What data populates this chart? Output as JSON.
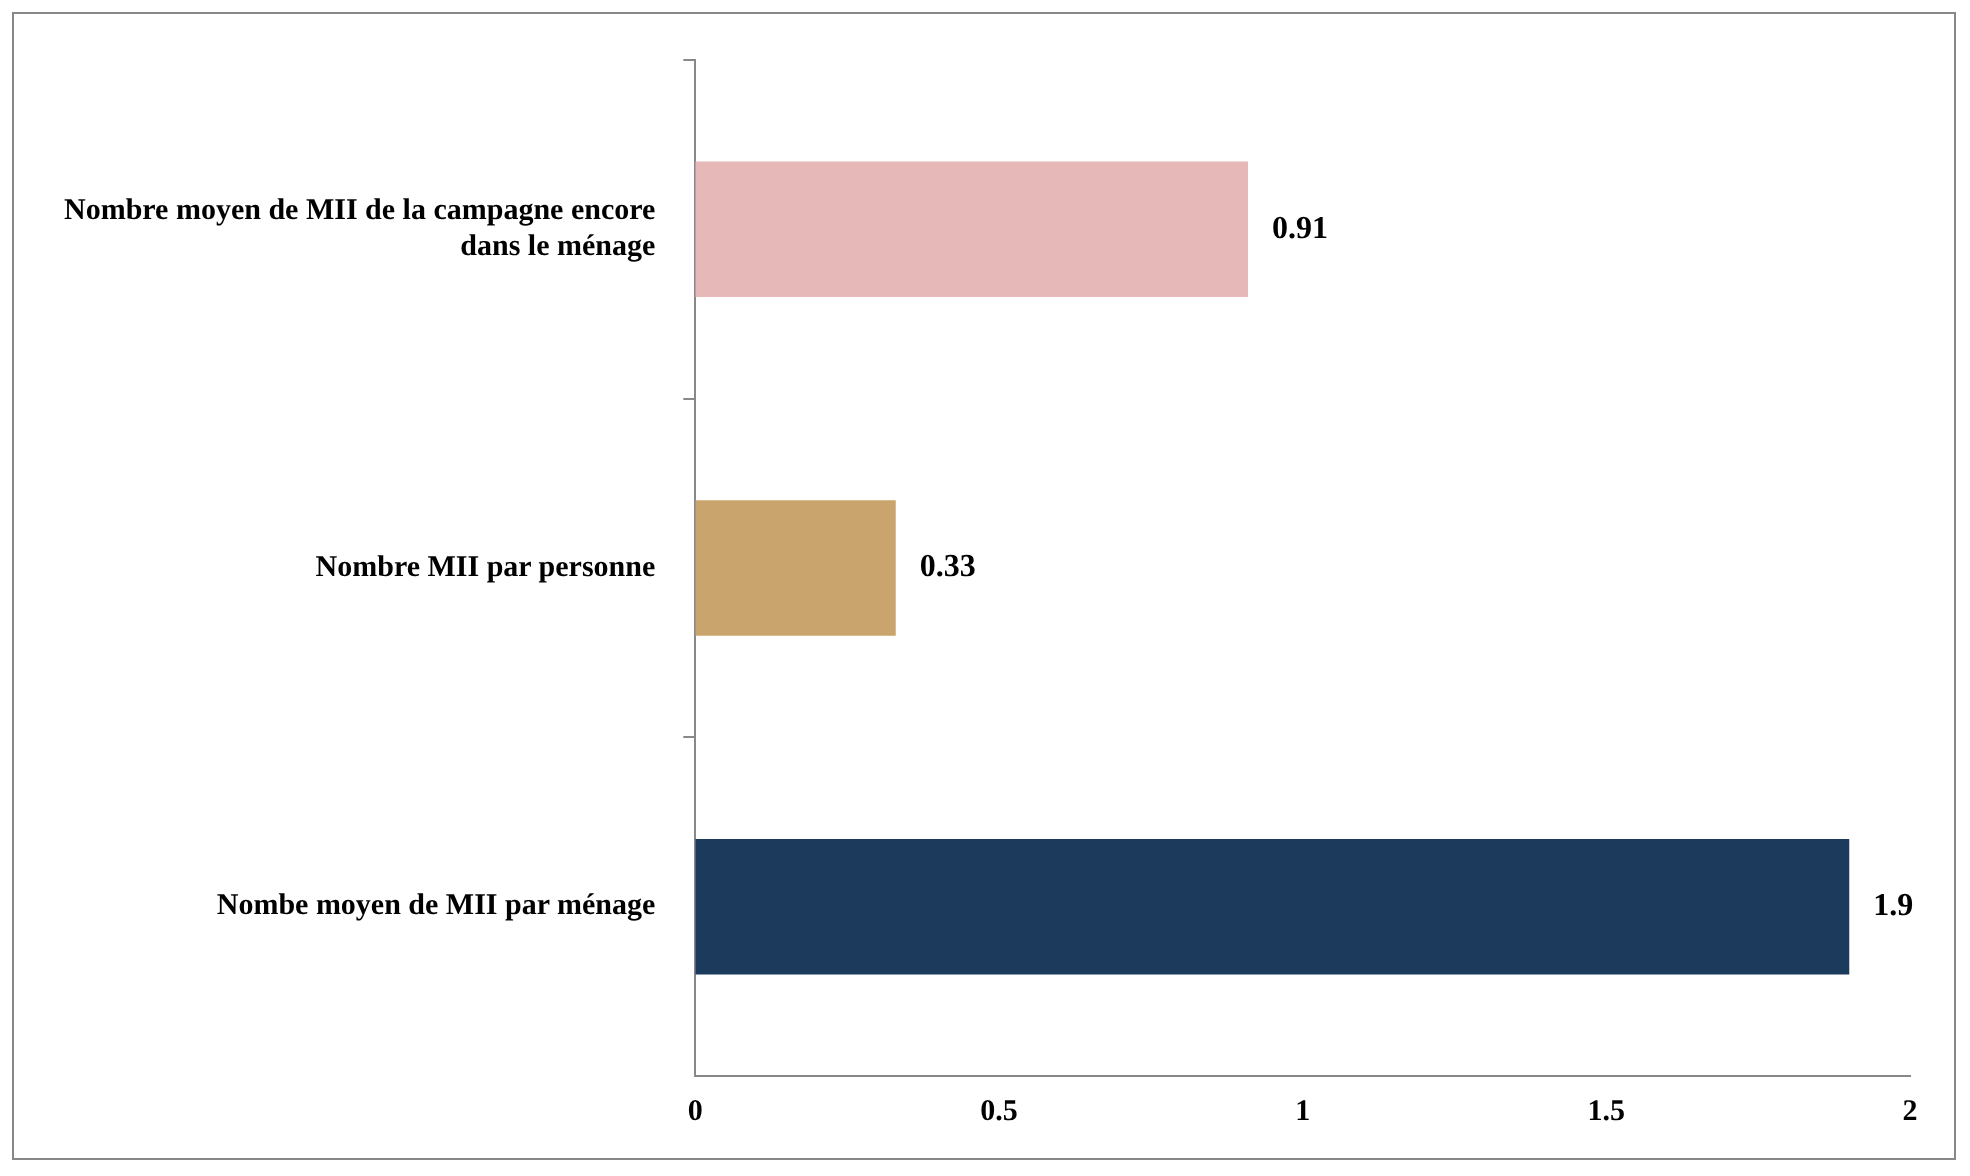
{
  "chart_data": {
    "type": "bar",
    "orientation": "horizontal",
    "categories": [
      "Nombre moyen de MII de la campagne encore dans le ménage",
      "Nombre MII par personne",
      "Nombe moyen de MII par ménage"
    ],
    "values": [
      0.91,
      0.33,
      1.9
    ],
    "colors": [
      "#e6b9b8",
      "#c9a46c",
      "#1b3a5c"
    ],
    "xlim": [
      0,
      2
    ],
    "xticks": [
      0,
      0.5,
      1,
      1.5,
      2
    ],
    "grid": false,
    "legend": false,
    "data_labels": true
  }
}
